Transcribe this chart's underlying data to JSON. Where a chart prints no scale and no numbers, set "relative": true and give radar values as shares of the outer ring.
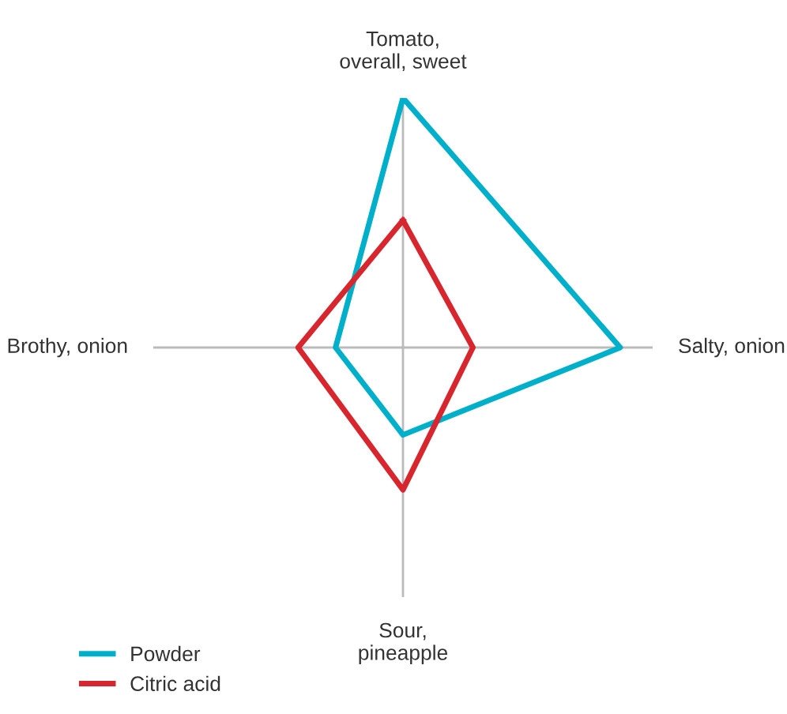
{
  "chart_data": {
    "type": "radar",
    "relative": true,
    "categories": [
      "Tomato,\noverall, sweet",
      "Salty, onion",
      "Sour,\npineapple",
      "Brothy, onion"
    ],
    "series": [
      {
        "name": "Powder",
        "color": "#00b0ca",
        "values": [
          1,
          0.87,
          0.35,
          0.27
        ]
      },
      {
        "name": "Citric acid",
        "color": "#d7262e",
        "values": [
          0.51,
          0.28,
          0.57,
          0.42
        ]
      }
    ],
    "legend": "bottom left"
  }
}
